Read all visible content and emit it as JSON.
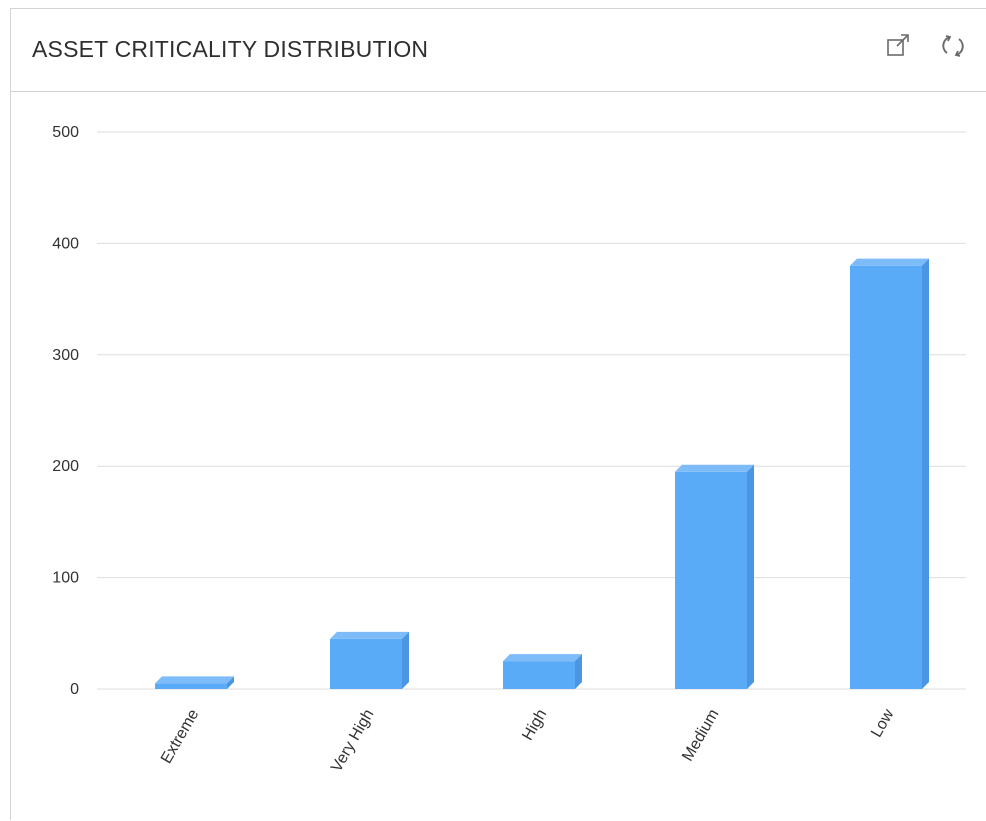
{
  "panel": {
    "title": "ASSET CRITICALITY DISTRIBUTION",
    "actions": [
      {
        "name": "open-external-icon"
      },
      {
        "name": "refresh-icon"
      }
    ]
  },
  "colors": {
    "bar_front": "#5aabf7",
    "bar_top": "#7dbcf9",
    "bar_side": "#4a96e3",
    "gridline": "#dddddd",
    "text": "#333333"
  },
  "chart_data": {
    "type": "bar",
    "title": "ASSET CRITICALITY DISTRIBUTION",
    "xlabel": "",
    "ylabel": "",
    "categories": [
      "Extreme",
      "Very High",
      "High",
      "Medium",
      "Low"
    ],
    "values": [
      5,
      45,
      25,
      195,
      380
    ],
    "ylim": [
      0,
      500
    ],
    "yticks": [
      0,
      100,
      200,
      300,
      400,
      500
    ],
    "grid": true,
    "legend": "none",
    "style": "3d"
  }
}
